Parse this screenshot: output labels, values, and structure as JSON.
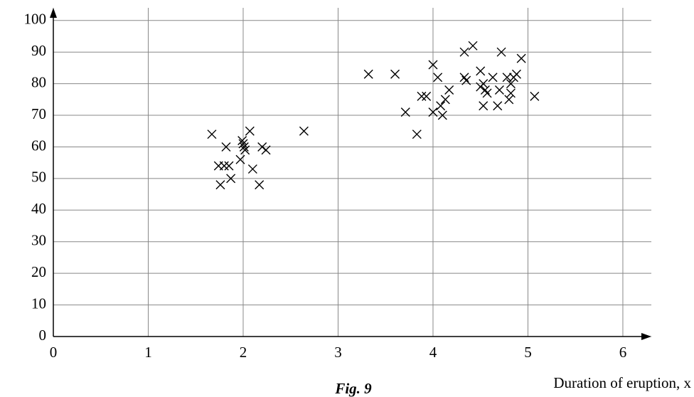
{
  "chart_data": {
    "type": "scatter",
    "x_label": "Duration of eruption, x",
    "caption": "Fig. 9",
    "xlim": [
      0,
      6.3
    ],
    "ylim": [
      0,
      104
    ],
    "xticks": [
      0,
      1,
      2,
      3,
      4,
      5,
      6
    ],
    "yticks": [
      0,
      10,
      20,
      30,
      40,
      50,
      60,
      70,
      80,
      90,
      100
    ],
    "grid": true,
    "series": [
      {
        "color": "#000000",
        "x": [
          1.67,
          1.74,
          1.76,
          1.82,
          1.8,
          1.85,
          1.87,
          1.97,
          1.99,
          2.0,
          2.01,
          2.02,
          2.07,
          2.1,
          2.17,
          2.2,
          2.24,
          2.64,
          3.32,
          3.6,
          3.71,
          3.83,
          3.88,
          3.93,
          4.0,
          4.0,
          4.05,
          4.08,
          4.1,
          4.13,
          4.17,
          4.33,
          4.33,
          4.35,
          4.42,
          4.5,
          4.5,
          4.53,
          4.53,
          4.55,
          4.57,
          4.63,
          4.68,
          4.7,
          4.72,
          4.78,
          4.8,
          4.82,
          4.82,
          4.85,
          4.88,
          4.93,
          5.07
        ],
        "values": [
          64,
          54,
          48,
          60,
          54,
          54,
          50,
          56,
          62,
          61,
          60,
          59,
          65,
          53,
          48,
          60,
          59,
          65,
          83,
          83,
          71,
          64,
          76,
          76,
          86,
          71,
          82,
          73,
          70,
          75,
          78,
          90,
          82,
          81,
          92,
          84,
          79,
          80,
          73,
          78,
          77,
          82,
          73,
          78,
          90,
          82,
          75,
          80,
          77,
          82,
          83,
          88,
          76
        ]
      }
    ]
  }
}
